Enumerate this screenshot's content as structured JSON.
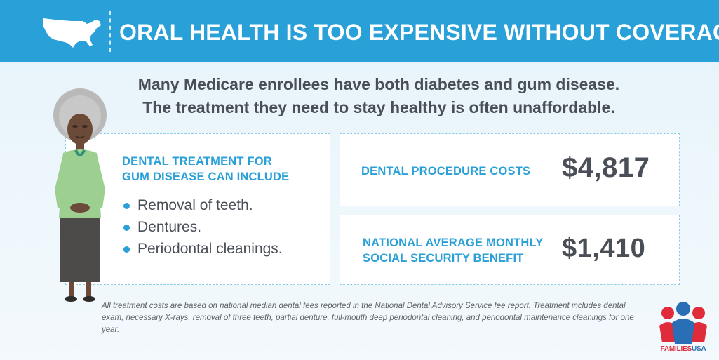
{
  "header": {
    "title": "ORAL HEALTH IS TOO EXPENSIVE WITHOUT COVERAGE",
    "icon": "usa-map-icon"
  },
  "subtitle": {
    "line1": "Many Medicare enrollees have both diabetes and gum disease.",
    "line2": "The treatment they need to stay healthy is often unaffordable."
  },
  "treatment": {
    "heading_line1": "DENTAL TREATMENT FOR",
    "heading_line2": "GUM DISEASE CAN INCLUDE",
    "items": [
      "Removal of teeth.",
      "Dentures.",
      "Periodontal cleanings."
    ]
  },
  "stats": {
    "procedure_label": "DENTAL PROCEDURE COSTS",
    "procedure_value": "$4,817",
    "benefit_label_line1": "NATIONAL AVERAGE MONTHLY",
    "benefit_label_line2": "SOCIAL SECURITY BENEFIT",
    "benefit_value": "$1,410"
  },
  "footnote": "All treatment costs are based on national median dental fees reported in the National Dental Advisory Service fee report. Treatment includes dental exam, necessary X-rays, removal of three teeth, partial denture, full-mouth deep periodontal cleaning, and periodontal maintenance cleanings for one year.",
  "logo": {
    "part1": "FAMILIES",
    "part2": "USA"
  },
  "colors": {
    "accent": "#2aa0d8",
    "text": "#4a4f57",
    "logo_red": "#e02b3a",
    "logo_blue": "#2a6eb5"
  }
}
